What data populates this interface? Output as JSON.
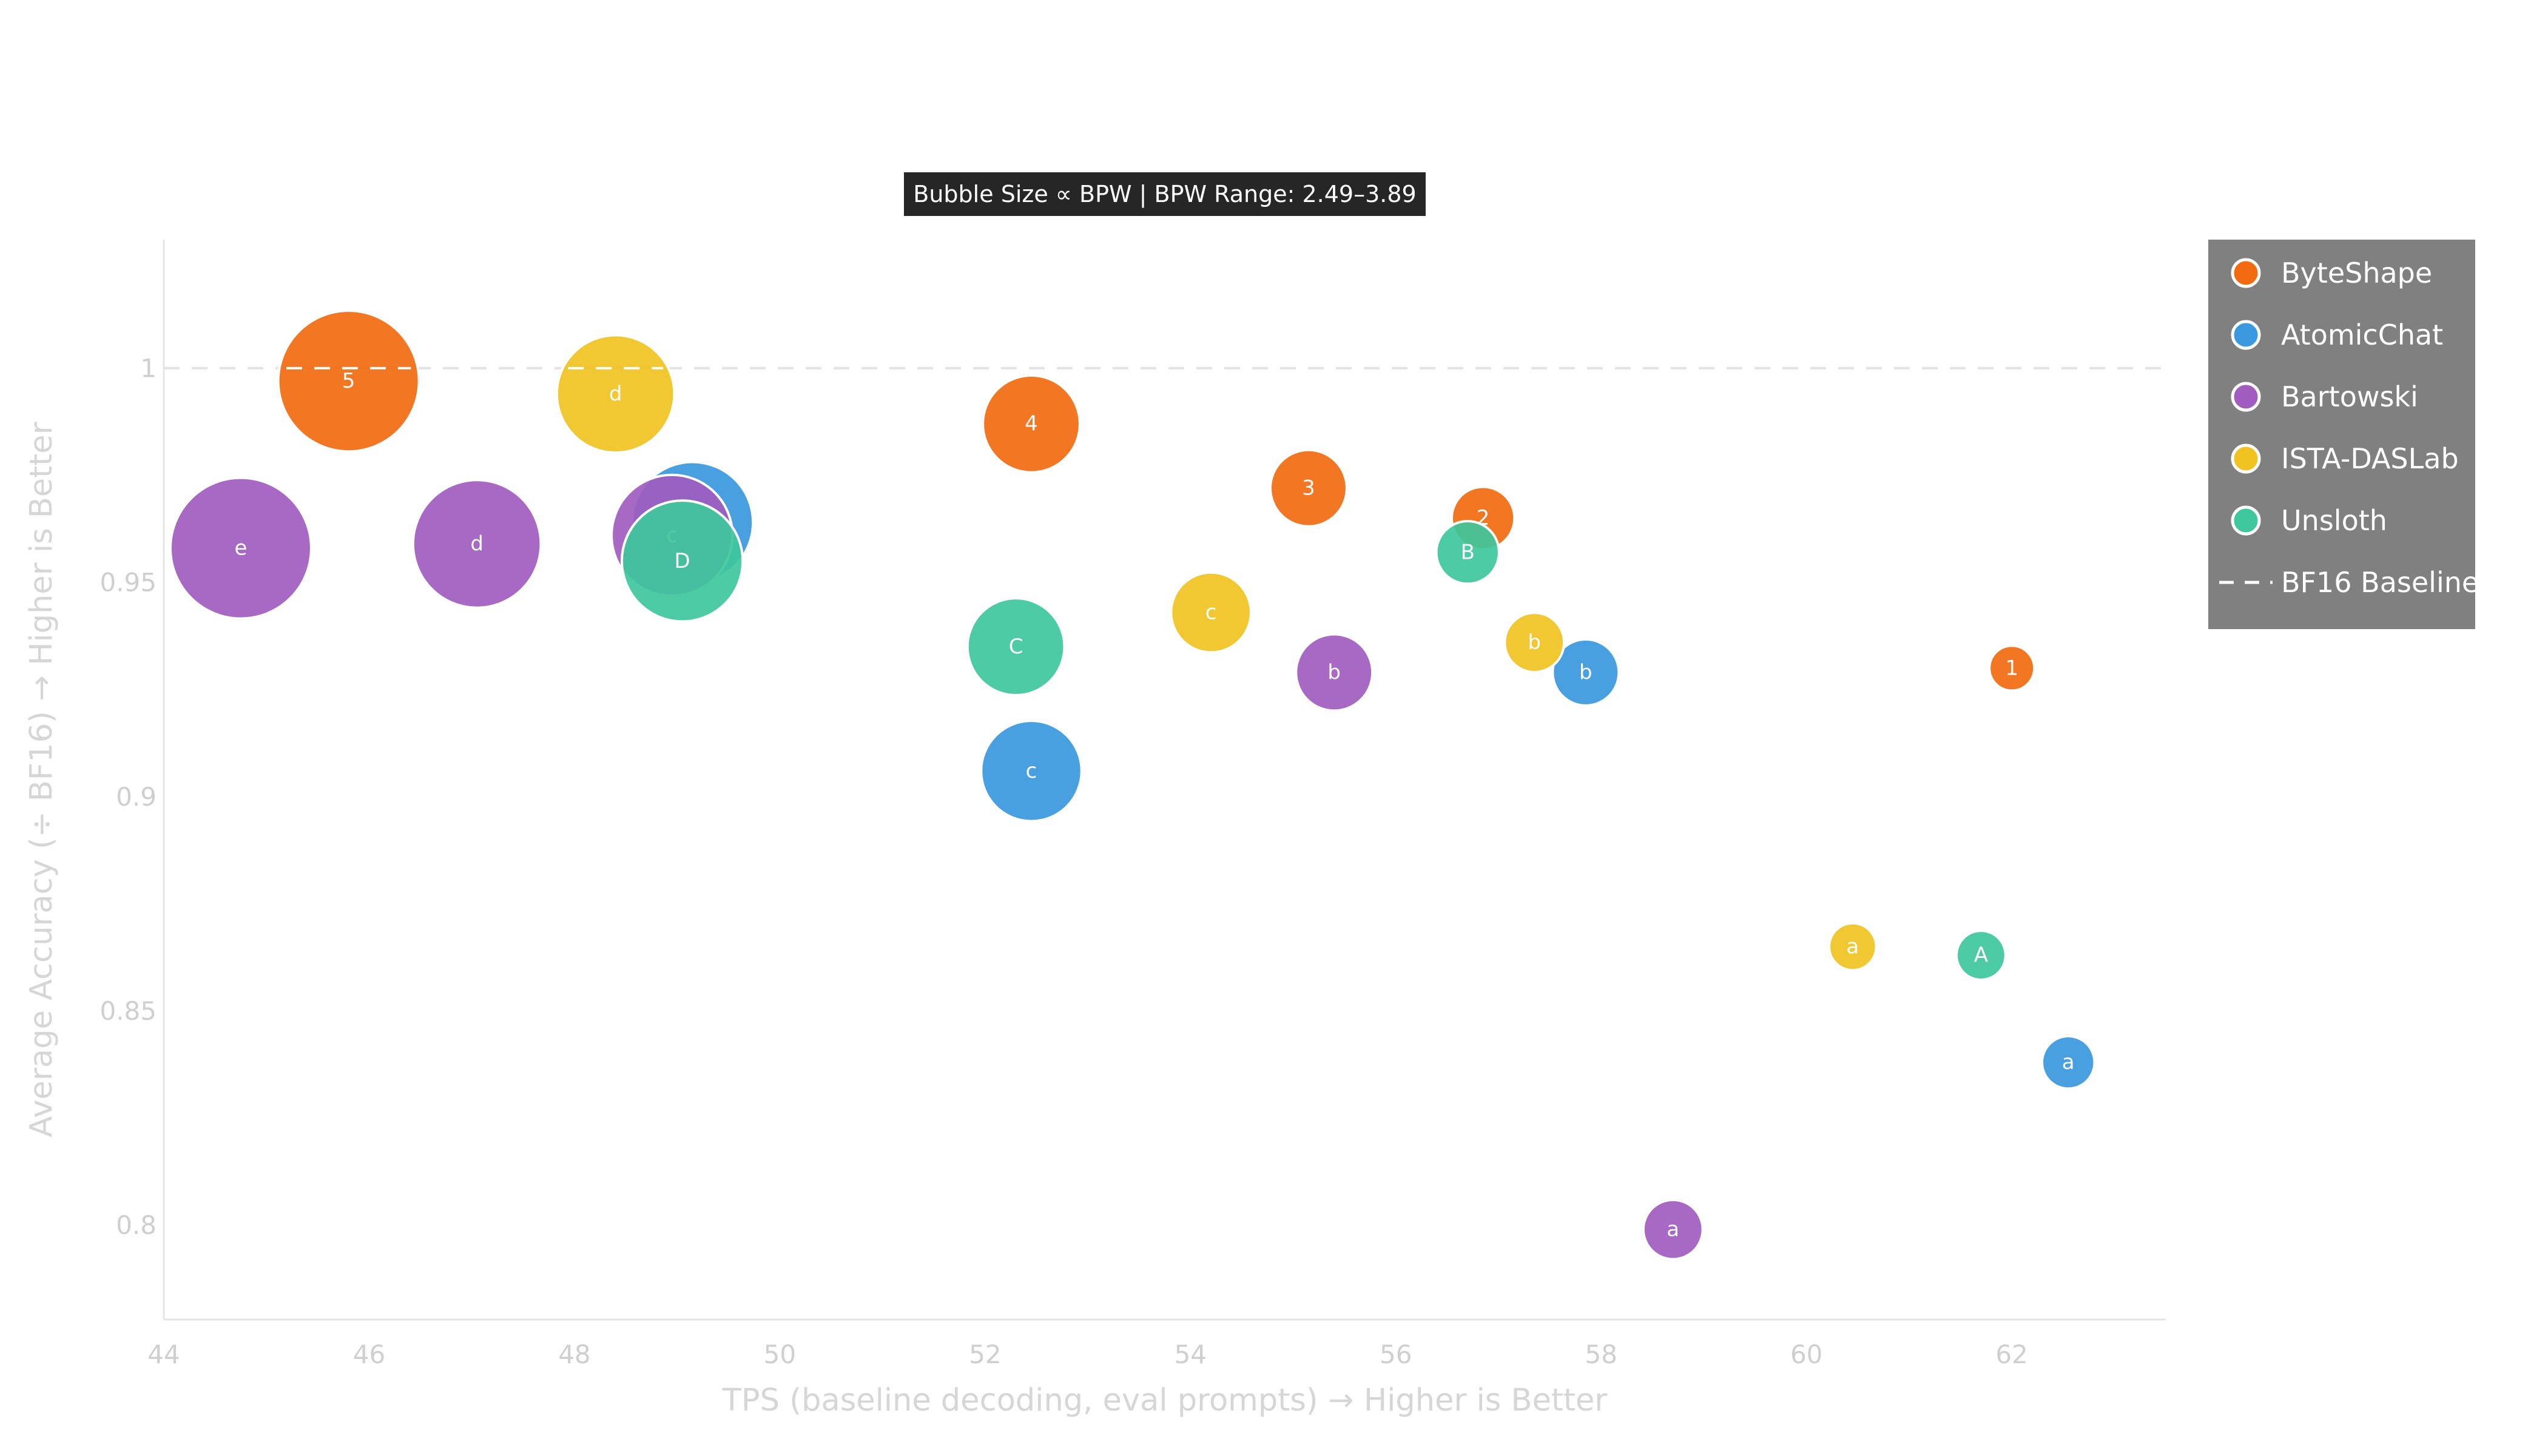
{
  "chart_data": {
    "type": "scatter",
    "subtitle": "Bubble Size ∝ BPW | BPW Range: 2.49–3.89",
    "xlabel": "TPS (baseline decoding, eval prompts) → Higher is Better",
    "ylabel": "Average Accuracy (÷ BF16) → Higher is Better",
    "xlim": [
      44,
      63.5
    ],
    "ylim": [
      0.778,
      1.03
    ],
    "xticks": [
      44,
      46,
      48,
      50,
      52,
      54,
      56,
      58,
      60,
      62
    ],
    "yticks": [
      0.8,
      0.85,
      0.9,
      0.95,
      1
    ],
    "grid": false,
    "legend_position": "top-right",
    "baseline": {
      "name": "BF16 Baseline",
      "y": 1.0
    },
    "bpw_range": [
      2.49,
      3.89
    ],
    "series": [
      {
        "name": "ByteShape",
        "color": "#f26b10",
        "points": [
          {
            "label": "5",
            "x": 45.8,
            "y": 0.997,
            "bpw": 3.89
          },
          {
            "label": "4",
            "x": 52.45,
            "y": 0.987,
            "bpw": 3.25
          },
          {
            "label": "3",
            "x": 55.15,
            "y": 0.972,
            "bpw": 2.95
          },
          {
            "label": "2",
            "x": 56.85,
            "y": 0.965,
            "bpw": 2.75
          },
          {
            "label": "1",
            "x": 62.0,
            "y": 0.93,
            "bpw": 2.49
          }
        ]
      },
      {
        "name": "AtomicChat",
        "color": "#3a98de",
        "points": [
          {
            "label": "d",
            "x": 49.15,
            "y": 0.964,
            "bpw": 3.6
          },
          {
            "label": "c",
            "x": 52.45,
            "y": 0.906,
            "bpw": 3.3
          },
          {
            "label": "b",
            "x": 57.85,
            "y": 0.929,
            "bpw": 2.8
          },
          {
            "label": "a",
            "x": 62.55,
            "y": 0.838,
            "bpw": 2.6
          }
        ]
      },
      {
        "name": "Bartowski",
        "color": "#a05cbf",
        "points": [
          {
            "label": "e",
            "x": 44.75,
            "y": 0.958,
            "bpw": 3.89
          },
          {
            "label": "d",
            "x": 47.05,
            "y": 0.959,
            "bpw": 3.7
          },
          {
            "label": "c",
            "x": 48.95,
            "y": 0.961,
            "bpw": 3.6
          },
          {
            "label": "b",
            "x": 55.4,
            "y": 0.929,
            "bpw": 2.95
          },
          {
            "label": "a",
            "x": 58.7,
            "y": 0.799,
            "bpw": 2.7
          }
        ]
      },
      {
        "name": "ISTA-DASLab",
        "color": "#f0c320",
        "points": [
          {
            "label": "d",
            "x": 48.4,
            "y": 0.994,
            "bpw": 3.55
          },
          {
            "label": "c",
            "x": 54.2,
            "y": 0.943,
            "bpw": 3.0
          },
          {
            "label": "b",
            "x": 57.35,
            "y": 0.936,
            "bpw": 2.7
          },
          {
            "label": "a",
            "x": 60.45,
            "y": 0.865,
            "bpw": 2.52
          }
        ]
      },
      {
        "name": "Unsloth",
        "color": "#3ec79c",
        "points": [
          {
            "label": "D",
            "x": 49.05,
            "y": 0.955,
            "bpw": 3.6
          },
          {
            "label": "C",
            "x": 52.3,
            "y": 0.935,
            "bpw": 3.25
          },
          {
            "label": "B",
            "x": 56.7,
            "y": 0.957,
            "bpw": 2.75
          },
          {
            "label": "A",
            "x": 61.7,
            "y": 0.863,
            "bpw": 2.55
          }
        ]
      }
    ]
  }
}
